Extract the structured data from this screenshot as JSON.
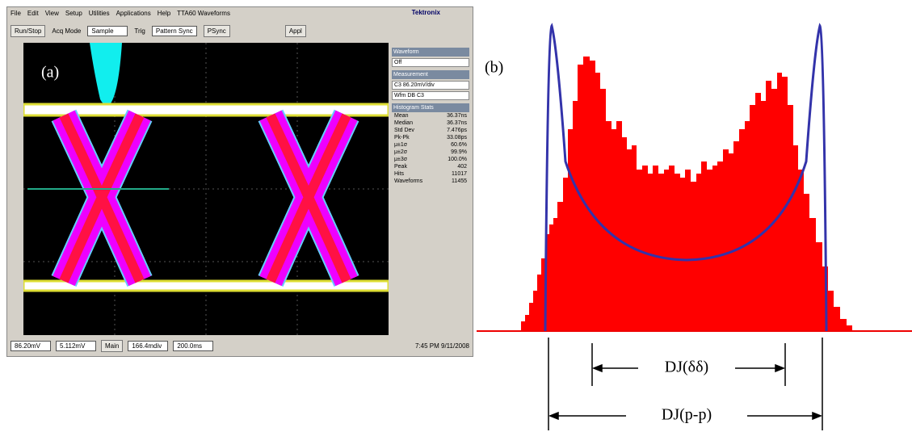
{
  "panel_a": {
    "label": "(a)",
    "menu": [
      "File",
      "Edit",
      "View",
      "Setup",
      "Utilities",
      "Applications",
      "Help",
      "TTA60 Waveforms"
    ],
    "brand": "Tektronix",
    "toolbar": {
      "run": "Run/Stop",
      "acq_mode": "Acq Mode",
      "acq_value": "Sample",
      "trig": "Trig",
      "trig_value": "Pattern Sync",
      "psync": "PSync",
      "appl": "Appl"
    },
    "side_panel": {
      "waveform": "Waveform",
      "off": "Off",
      "measurement": "Measurement",
      "source": "C3 86.20mV/div",
      "wfm": "Wfm DB C3",
      "hist_title": "Histogram Stats"
    },
    "stats": [
      {
        "name": "Mean",
        "value": "36.37ns"
      },
      {
        "name": "Median",
        "value": "36.37ns"
      },
      {
        "name": "Std Dev",
        "value": "7.476ps"
      },
      {
        "name": "Pk-Pk",
        "value": "33.08ps"
      },
      {
        "name": "μ±1σ",
        "value": "60.6%"
      },
      {
        "name": "μ±2σ",
        "value": "99.9%"
      },
      {
        "name": "μ±3σ",
        "value": "100.0%"
      },
      {
        "name": "Peak",
        "value": "402"
      },
      {
        "name": "Hits",
        "value": "11017"
      },
      {
        "name": "Waveforms",
        "value": "11455"
      }
    ],
    "status_bar": {
      "vscale": "86.20mV",
      "offset": "5.112mV",
      "main": "Main",
      "hpos": "166.4mdiv",
      "hscale": "200.0ms",
      "time": "7:45 PM 9/11/2008"
    }
  },
  "panel_b": {
    "label": "(b)",
    "dj_dd": "DJ(δδ)",
    "dj_pp": "DJ(p-p)"
  }
}
